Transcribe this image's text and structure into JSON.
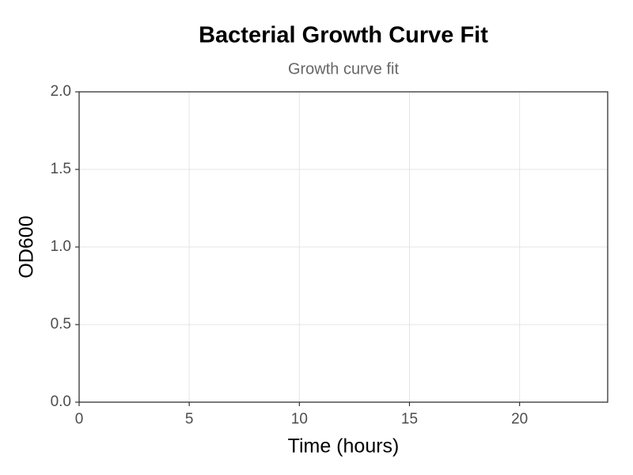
{
  "chart_data": {
    "type": "line",
    "title": "Bacterial Growth Curve Fit",
    "subtitle": "Growth curve fit",
    "x_label": "Time (hours)",
    "y_label": "OD600",
    "series": [],
    "xlim": [
      0,
      24
    ],
    "xticks": [
      0,
      5,
      10,
      15,
      20
    ],
    "ylim": [
      0,
      2
    ],
    "yticks": [
      {
        "value": 0,
        "label": "0.0"
      },
      0.5,
      {
        "value": 1,
        "label": "1.0"
      },
      1.5,
      {
        "value": 2,
        "label": "2.0"
      }
    ],
    "grid": true
  }
}
